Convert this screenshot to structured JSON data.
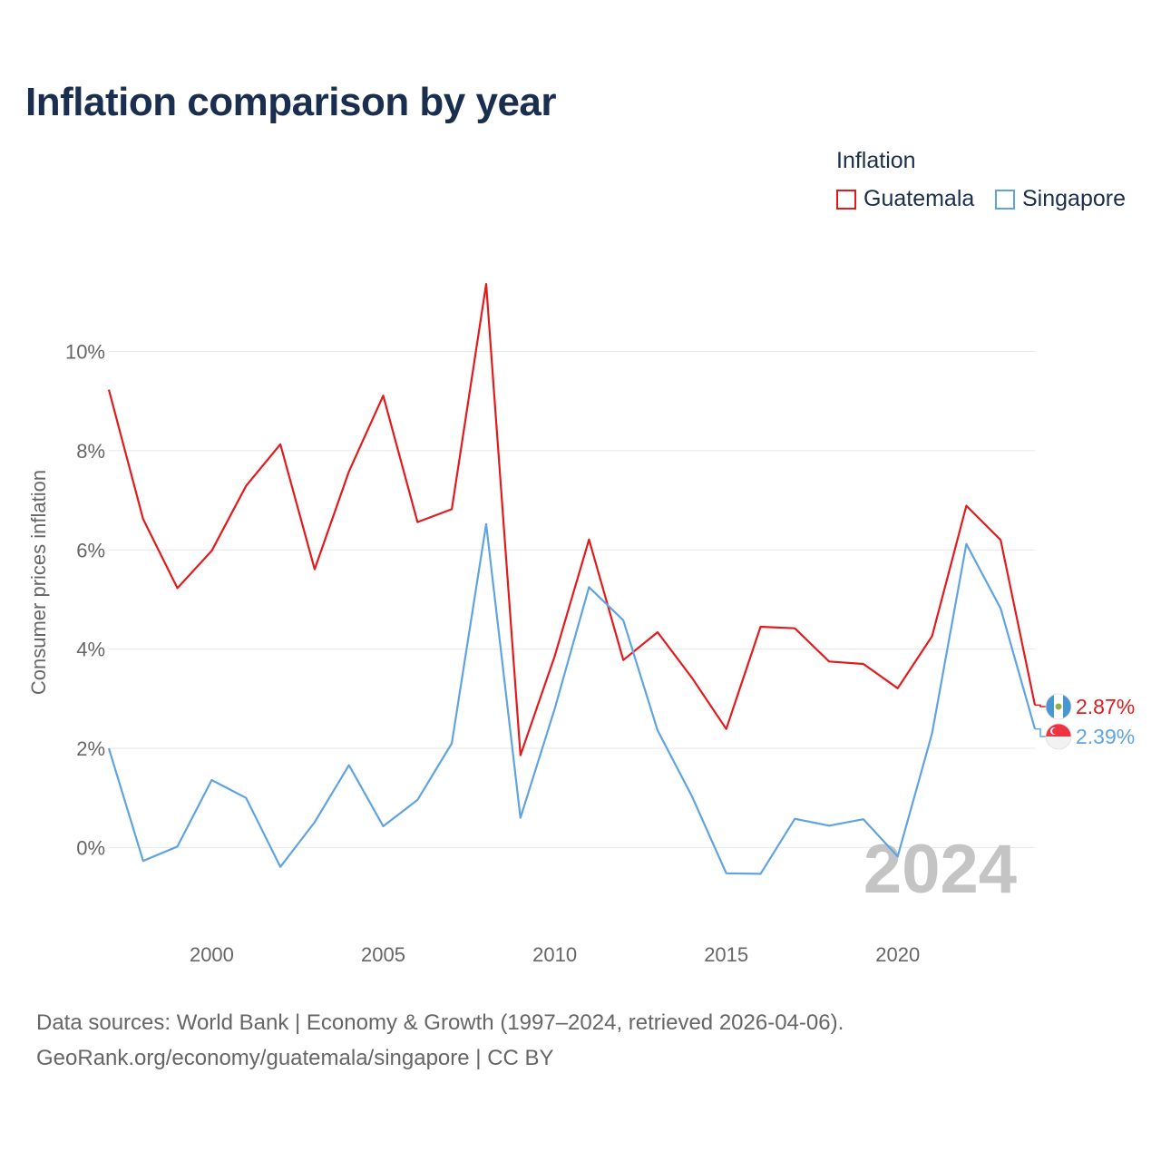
{
  "title": "Inflation comparison by year",
  "legend": {
    "title": "Inflation",
    "items": [
      {
        "label": "Guatemala",
        "color": "#e31a1c"
      },
      {
        "label": "Singapore",
        "color": "#5fa4e0"
      }
    ]
  },
  "source": {
    "line1": "Data sources: World Bank | Economy & Growth (1997–2024, retrieved 2026-04-06).",
    "line2": "GeoRank.org/economy/guatemala/singapore | CC BY"
  },
  "chart_data": {
    "type": "line",
    "title": "Inflation comparison by year",
    "ylabel": "Consumer prices inflation",
    "xlabel": "",
    "xlim": [
      1997,
      2024
    ],
    "ylim": [
      -1.2,
      11.6
    ],
    "x_ticks": [
      2000,
      2005,
      2010,
      2015,
      2020
    ],
    "x_tick_labels": [
      "2000",
      "2005",
      "2010",
      "2015",
      "2020"
    ],
    "y_ticks": [
      0,
      2,
      4,
      6,
      8,
      10
    ],
    "y_tick_labels": [
      "0%",
      "2%",
      "4%",
      "6%",
      "8%",
      "10%"
    ],
    "grid": true,
    "legend_position": "top-right",
    "watermark_year": "2024",
    "x": [
      1997,
      1998,
      1999,
      2000,
      2001,
      2002,
      2003,
      2004,
      2005,
      2006,
      2007,
      2008,
      2009,
      2010,
      2011,
      2012,
      2013,
      2014,
      2015,
      2016,
      2017,
      2018,
      2019,
      2020,
      2021,
      2022,
      2023,
      2024
    ],
    "series": [
      {
        "name": "Guatemala",
        "color": "#e31a1c",
        "end_label": "2.87%",
        "values": [
          9.23,
          6.62,
          5.23,
          5.98,
          7.29,
          8.13,
          5.61,
          7.58,
          9.11,
          6.56,
          6.82,
          11.36,
          1.86,
          3.86,
          6.21,
          3.78,
          4.34,
          3.42,
          2.39,
          4.45,
          4.42,
          3.75,
          3.7,
          3.21,
          4.26,
          6.89,
          6.2,
          2.87
        ]
      },
      {
        "name": "Singapore",
        "color": "#5fa4e0",
        "end_label": "2.39%",
        "values": [
          2.0,
          -0.27,
          0.02,
          1.36,
          1.0,
          -0.39,
          0.51,
          1.66,
          0.43,
          0.96,
          2.1,
          6.52,
          0.6,
          2.8,
          5.25,
          4.58,
          2.36,
          1.03,
          -0.52,
          -0.53,
          0.58,
          0.44,
          0.57,
          -0.18,
          2.3,
          6.12,
          4.82,
          2.39
        ]
      }
    ]
  }
}
